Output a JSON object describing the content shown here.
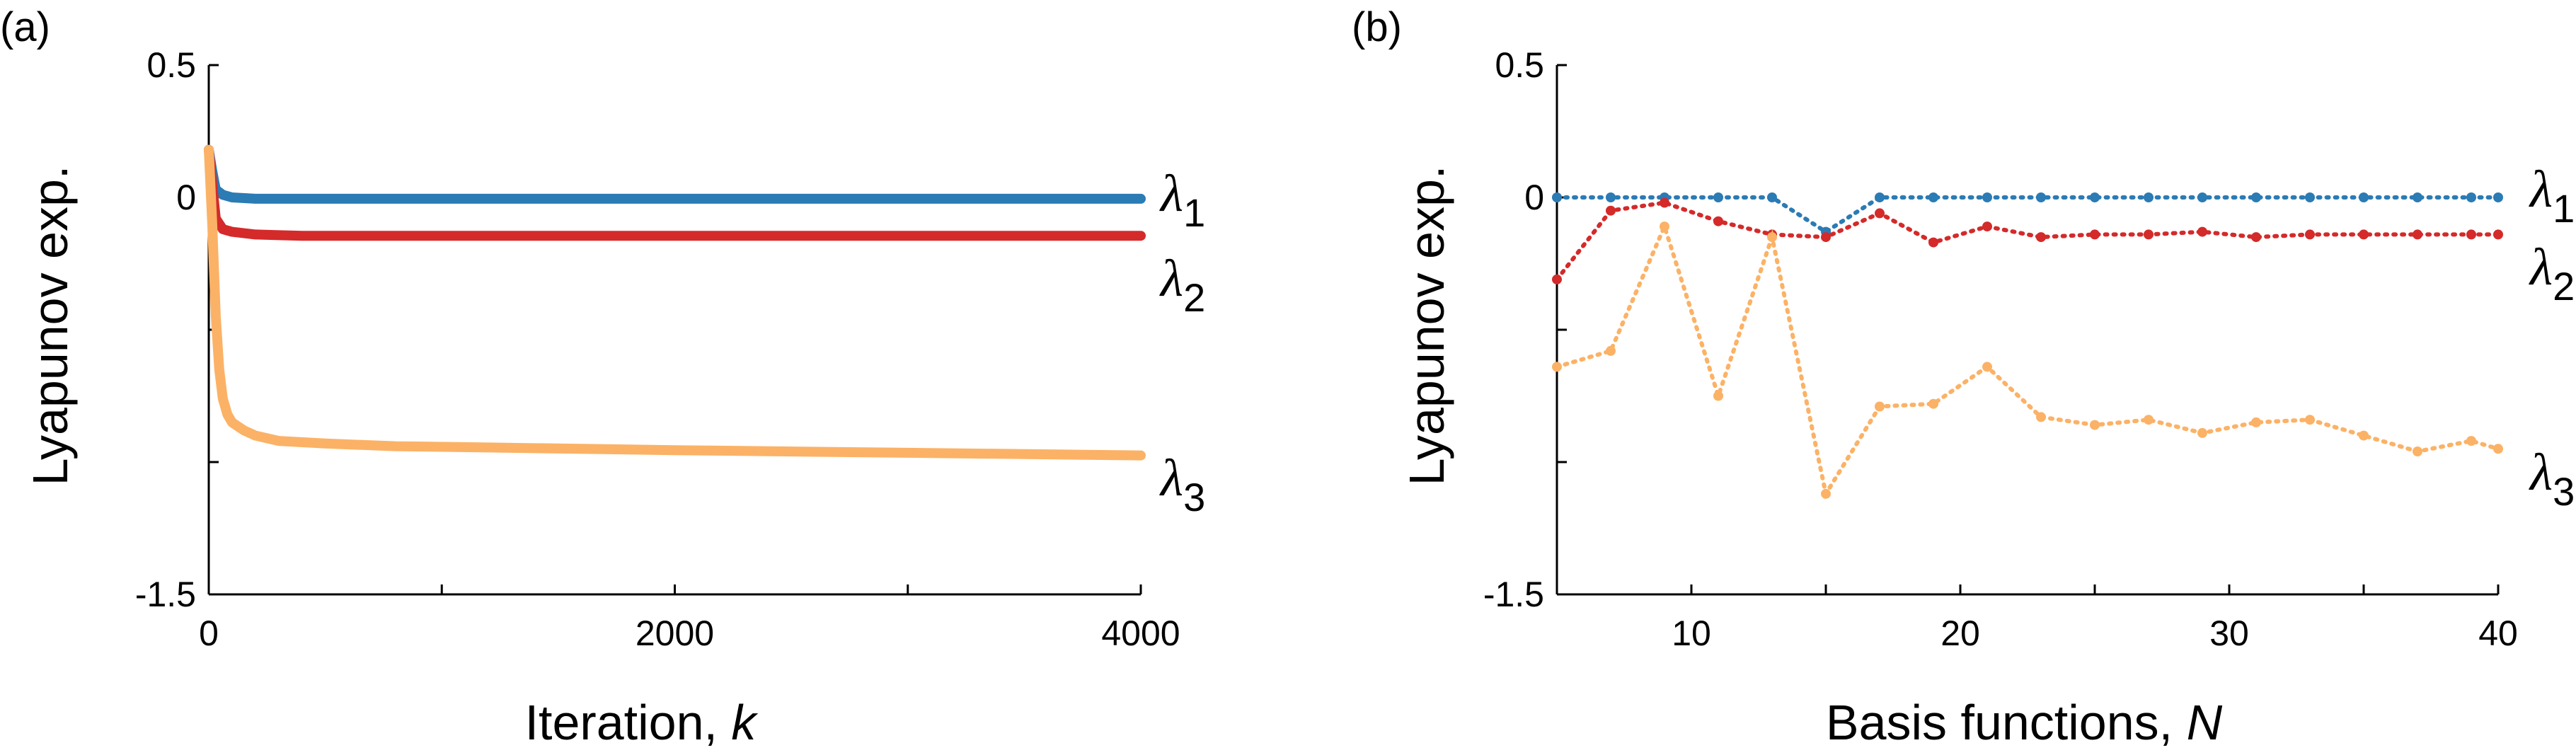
{
  "panels": [
    {
      "id": "a",
      "panel_label": "(a)",
      "xlabel_text": "Iteration, ",
      "xlabel_var": "k",
      "ylabel": "Lyapunov exp.",
      "x_ticks": [
        0,
        2000,
        4000
      ],
      "y_ticks": [
        0.5,
        0,
        -1.5
      ],
      "series_labels": [
        "λ",
        "λ",
        "λ"
      ],
      "series_subs": [
        "1",
        "2",
        "3"
      ]
    },
    {
      "id": "b",
      "panel_label": "(b)",
      "xlabel_text": "Basis functions, ",
      "xlabel_var": "N",
      "ylabel": "Lyapunov exp.",
      "x_ticks": [
        10,
        20,
        30,
        40
      ],
      "y_ticks": [
        0.5,
        0,
        -1.5
      ],
      "series_labels": [
        "λ",
        "λ",
        "λ"
      ],
      "series_subs": [
        "1",
        "2",
        "3"
      ]
    }
  ],
  "chart_data": [
    {
      "type": "line",
      "panel": "a",
      "xlabel": "Iteration, k",
      "ylabel": "Lyapunov exp.",
      "xlim": [
        0,
        4000
      ],
      "ylim": [
        -1.5,
        0.5
      ],
      "grid": false,
      "colors": [
        "#2b7bb4",
        "#d42a2a",
        "#fbb266"
      ],
      "series": [
        {
          "name": "λ1",
          "x": [
            0,
            15,
            30,
            60,
            100,
            200,
            400,
            1000,
            2000,
            3000,
            4000
          ],
          "values": [
            0.18,
            0.1,
            0.03,
            0.01,
            0.0,
            -0.005,
            -0.005,
            -0.005,
            -0.005,
            -0.005,
            -0.005
          ]
        },
        {
          "name": "λ2",
          "x": [
            0,
            15,
            30,
            60,
            100,
            200,
            400,
            1000,
            2000,
            3000,
            4000
          ],
          "values": [
            0.18,
            0.05,
            -0.08,
            -0.12,
            -0.13,
            -0.14,
            -0.145,
            -0.145,
            -0.145,
            -0.145,
            -0.145
          ]
        },
        {
          "name": "λ3",
          "x": [
            0,
            15,
            30,
            45,
            60,
            80,
            100,
            150,
            200,
            300,
            500,
            800,
            1200,
            2000,
            3000,
            4000
          ],
          "values": [
            0.18,
            -0.1,
            -0.45,
            -0.65,
            -0.76,
            -0.82,
            -0.85,
            -0.88,
            -0.9,
            -0.92,
            -0.93,
            -0.94,
            -0.945,
            -0.955,
            -0.965,
            -0.975
          ]
        }
      ]
    },
    {
      "type": "line",
      "panel": "b",
      "xlabel": "Basis functions, N",
      "ylabel": "Lyapunov exp.",
      "xlim": [
        5,
        40
      ],
      "ylim": [
        -1.5,
        0.5
      ],
      "grid": false,
      "line_style": "dotted with dot markers",
      "colors": [
        "#2b7bb4",
        "#d42a2a",
        "#fbb266"
      ],
      "x": [
        5,
        7,
        9,
        11,
        13,
        15,
        17,
        19,
        21,
        23,
        25,
        27,
        29,
        31,
        33,
        35,
        37,
        39,
        40
      ],
      "series": [
        {
          "name": "λ1",
          "values": [
            0,
            0,
            0,
            0,
            0,
            -0.13,
            0,
            0,
            0,
            0,
            0,
            0,
            0,
            0,
            0,
            0,
            0,
            0,
            0
          ]
        },
        {
          "name": "λ2",
          "values": [
            -0.31,
            -0.05,
            -0.02,
            -0.09,
            -0.14,
            -0.15,
            -0.06,
            -0.17,
            -0.11,
            -0.15,
            -0.14,
            -0.14,
            -0.13,
            -0.15,
            -0.14,
            -0.14,
            -0.14,
            -0.14,
            -0.14
          ]
        },
        {
          "name": "λ3",
          "values": [
            -0.64,
            -0.58,
            -0.11,
            -0.75,
            -0.15,
            -1.12,
            -0.79,
            -0.78,
            -0.64,
            -0.83,
            -0.86,
            -0.84,
            -0.89,
            -0.85,
            -0.84,
            -0.9,
            -0.96,
            -0.92,
            -0.95
          ]
        }
      ]
    }
  ]
}
